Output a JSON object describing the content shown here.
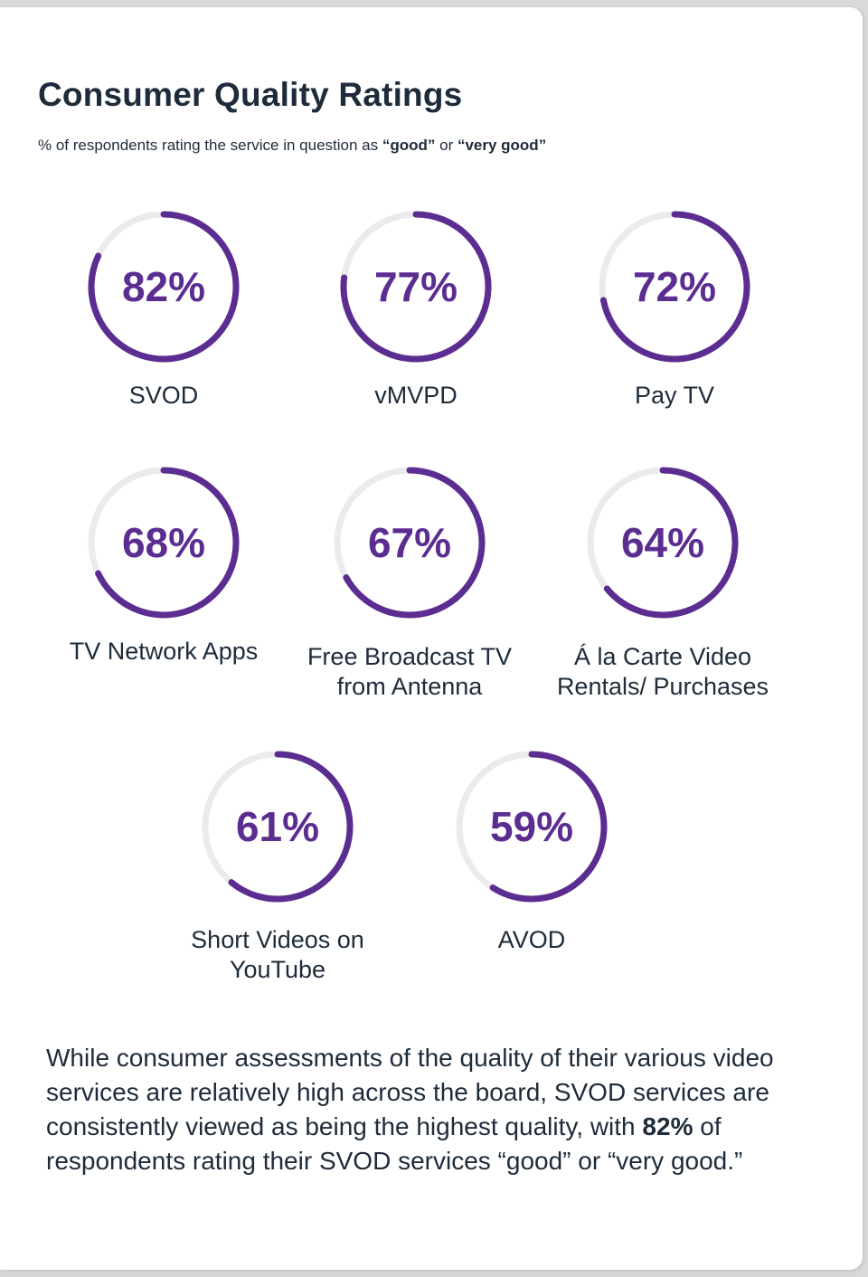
{
  "title": "Consumer Quality Ratings",
  "subtitle": {
    "prefix": "% of respondents rating the service in question as ",
    "good": "“good”",
    "or": " or ",
    "very_good": "“very good”"
  },
  "colors": {
    "accent": "#5c2d91",
    "track": "#ebebed",
    "text": "#1e2b3a"
  },
  "chart_data": {
    "type": "donut",
    "title": "Consumer Quality Ratings",
    "unit": "%",
    "items": [
      {
        "label": "SVOD",
        "value": 82,
        "value_label": "82%"
      },
      {
        "label": "vMVPD",
        "value": 77,
        "value_label": "77%"
      },
      {
        "label": "Pay TV",
        "value": 72,
        "value_label": "72%"
      },
      {
        "label": "TV Network Apps",
        "value": 68,
        "value_label": "68%"
      },
      {
        "label": "Free Broadcast TV from Antenna",
        "value": 67,
        "value_label": "67%"
      },
      {
        "label": "Á la Carte Video Rentals/ Purchases",
        "value": 64,
        "value_label": "64%"
      },
      {
        "label": "Short Videos on YouTube",
        "value": 61,
        "value_label": "61%"
      },
      {
        "label": "AVOD",
        "value": 59,
        "value_label": "59%"
      }
    ]
  },
  "body": {
    "before": "While consumer assessments of the quality of their various video services are relatively high across the board, SVOD services are consistently viewed as being the highest quality, with ",
    "highlight": "82%",
    "after": " of respondents rating their SVOD services “good” or “very good.”"
  }
}
